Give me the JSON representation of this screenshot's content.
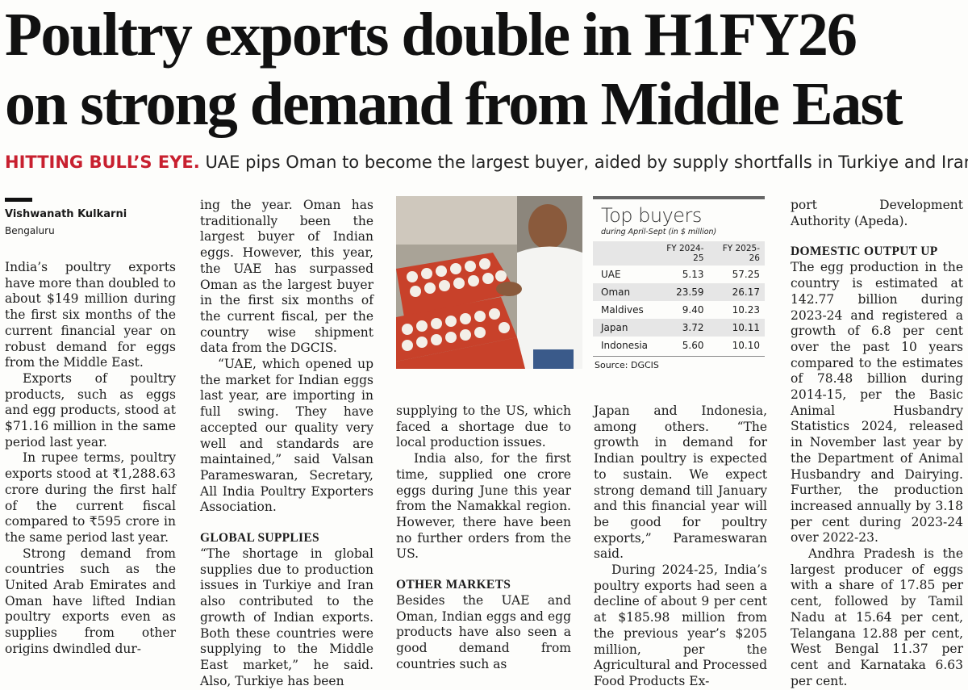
{
  "headline": {
    "line1": "Poultry exports double in H1FY26",
    "line2": "on strong demand from Middle East"
  },
  "deck": {
    "kicker": "HITTING BULL’S EYE.",
    "text": "UAE pips Oman to become the largest buyer, aided by supply shortfalls in Turkiye and Iran"
  },
  "byline": {
    "author": "Vishwanath Kulkarni",
    "place": "Bengaluru"
  },
  "col1": {
    "p1": "India’s poultry exports have more than doubled to about $149 million during the first six months of the current financial year on robust demand for eggs from the Middle East.",
    "p2": "Exports of poultry products, such as eggs and egg products, stood at $71.16 million in the same period last year.",
    "p3": "In rupee terms, poultry exports stood at ₹1,288.63 crore during the first half of the current fiscal compared to ₹595 crore in the same period last year.",
    "p4": "Strong demand from countries such as the United Arab Emirates and Oman have lifted Indian poultry exports even as supplies from other origins dwindled dur-"
  },
  "col2": {
    "p1": "ing the year. Oman has traditionally been the largest buyer of Indian eggs. However, this year, the UAE has surpassed Oman as the largest buyer in the first six months of the current fiscal, per the country wise shipment data from the DGCIS.",
    "p2": "“UAE, which opened up the market for Indian eggs last year, are importing in full swing. They have accepted our quality very well and standards are maintained,” said Valsan Parameswaran, Secretary, All India Poultry Exporters Association.",
    "h1": "GLOBAL SUPPLIES",
    "p3": "“The shortage in global supplies due to production issues in Turkiye and Iran also contributed to the growth of Indian exports. Both these countries were supplying to the Middle East market,” he said. Also, Turkiye has been"
  },
  "col3": {
    "p1": "supplying to the US, which faced a shortage due to local production issues.",
    "p2": "India also, for the first time, supplied one crore eggs during June this year from the Namakkal region. However, there have been no further orders from the US.",
    "h1": "OTHER MARKETS",
    "p3": "Besides the UAE and Oman, Indian eggs and egg products have also seen a good demand from countries such as"
  },
  "col4": {
    "p1": "Japan and Indonesia, among others. “The growth in demand for Indian poultry is expected to sustain. We expect strong demand till January and this financial year will be good for poultry exports,” Parameswaran said.",
    "p2": "During 2024-25, India’s poultry exports had seen a decline of about 9 per cent at $185.98 million from the previous year’s $205 million, per the Agricultural and Processed Food Products Ex-"
  },
  "col5": {
    "p1": "port Development Authority (Apeda).",
    "h1": "DOMESTIC OUTPUT UP",
    "p2": "The egg production in the country is estimated at 142.77 billion during 2023-24 and registered a growth of 6.8 per cent over the past 10 years compared to the estimates of 78.48 billion during 2014-15, per the Basic Animal Husbandry Statistics 2024, released in November last year by the Department of Animal Husbandry and Dairying. Further, the production increased annually by 3.18 per cent during 2023-24 over 2022-23.",
    "p3": "Andhra Pradesh is the largest producer of eggs with a share of 17.85 per cent, followed by Tamil Nadu at 15.64 per cent, Telangana 12.88 per cent, West Bengal 11.37 per cent and Karnataka 6.63 per cent."
  },
  "table": {
    "title": "Top buyers",
    "subtitle": "during April-Sept (in $ million)",
    "col_a": "FY 2024-25",
    "col_b": "FY 2025-26",
    "rows": [
      {
        "country": "UAE",
        "a": "5.13",
        "b": "57.25"
      },
      {
        "country": "Oman",
        "a": "23.59",
        "b": "26.17"
      },
      {
        "country": "Maldives",
        "a": "9.40",
        "b": "10.23"
      },
      {
        "country": "Japan",
        "a": "3.72",
        "b": "10.11"
      },
      {
        "country": "Indonesia",
        "a": "5.60",
        "b": "10.10"
      }
    ],
    "source": "Source: DGCIS"
  },
  "colors": {
    "kicker": "#c8202f",
    "egg_tray": "#c8412a"
  }
}
